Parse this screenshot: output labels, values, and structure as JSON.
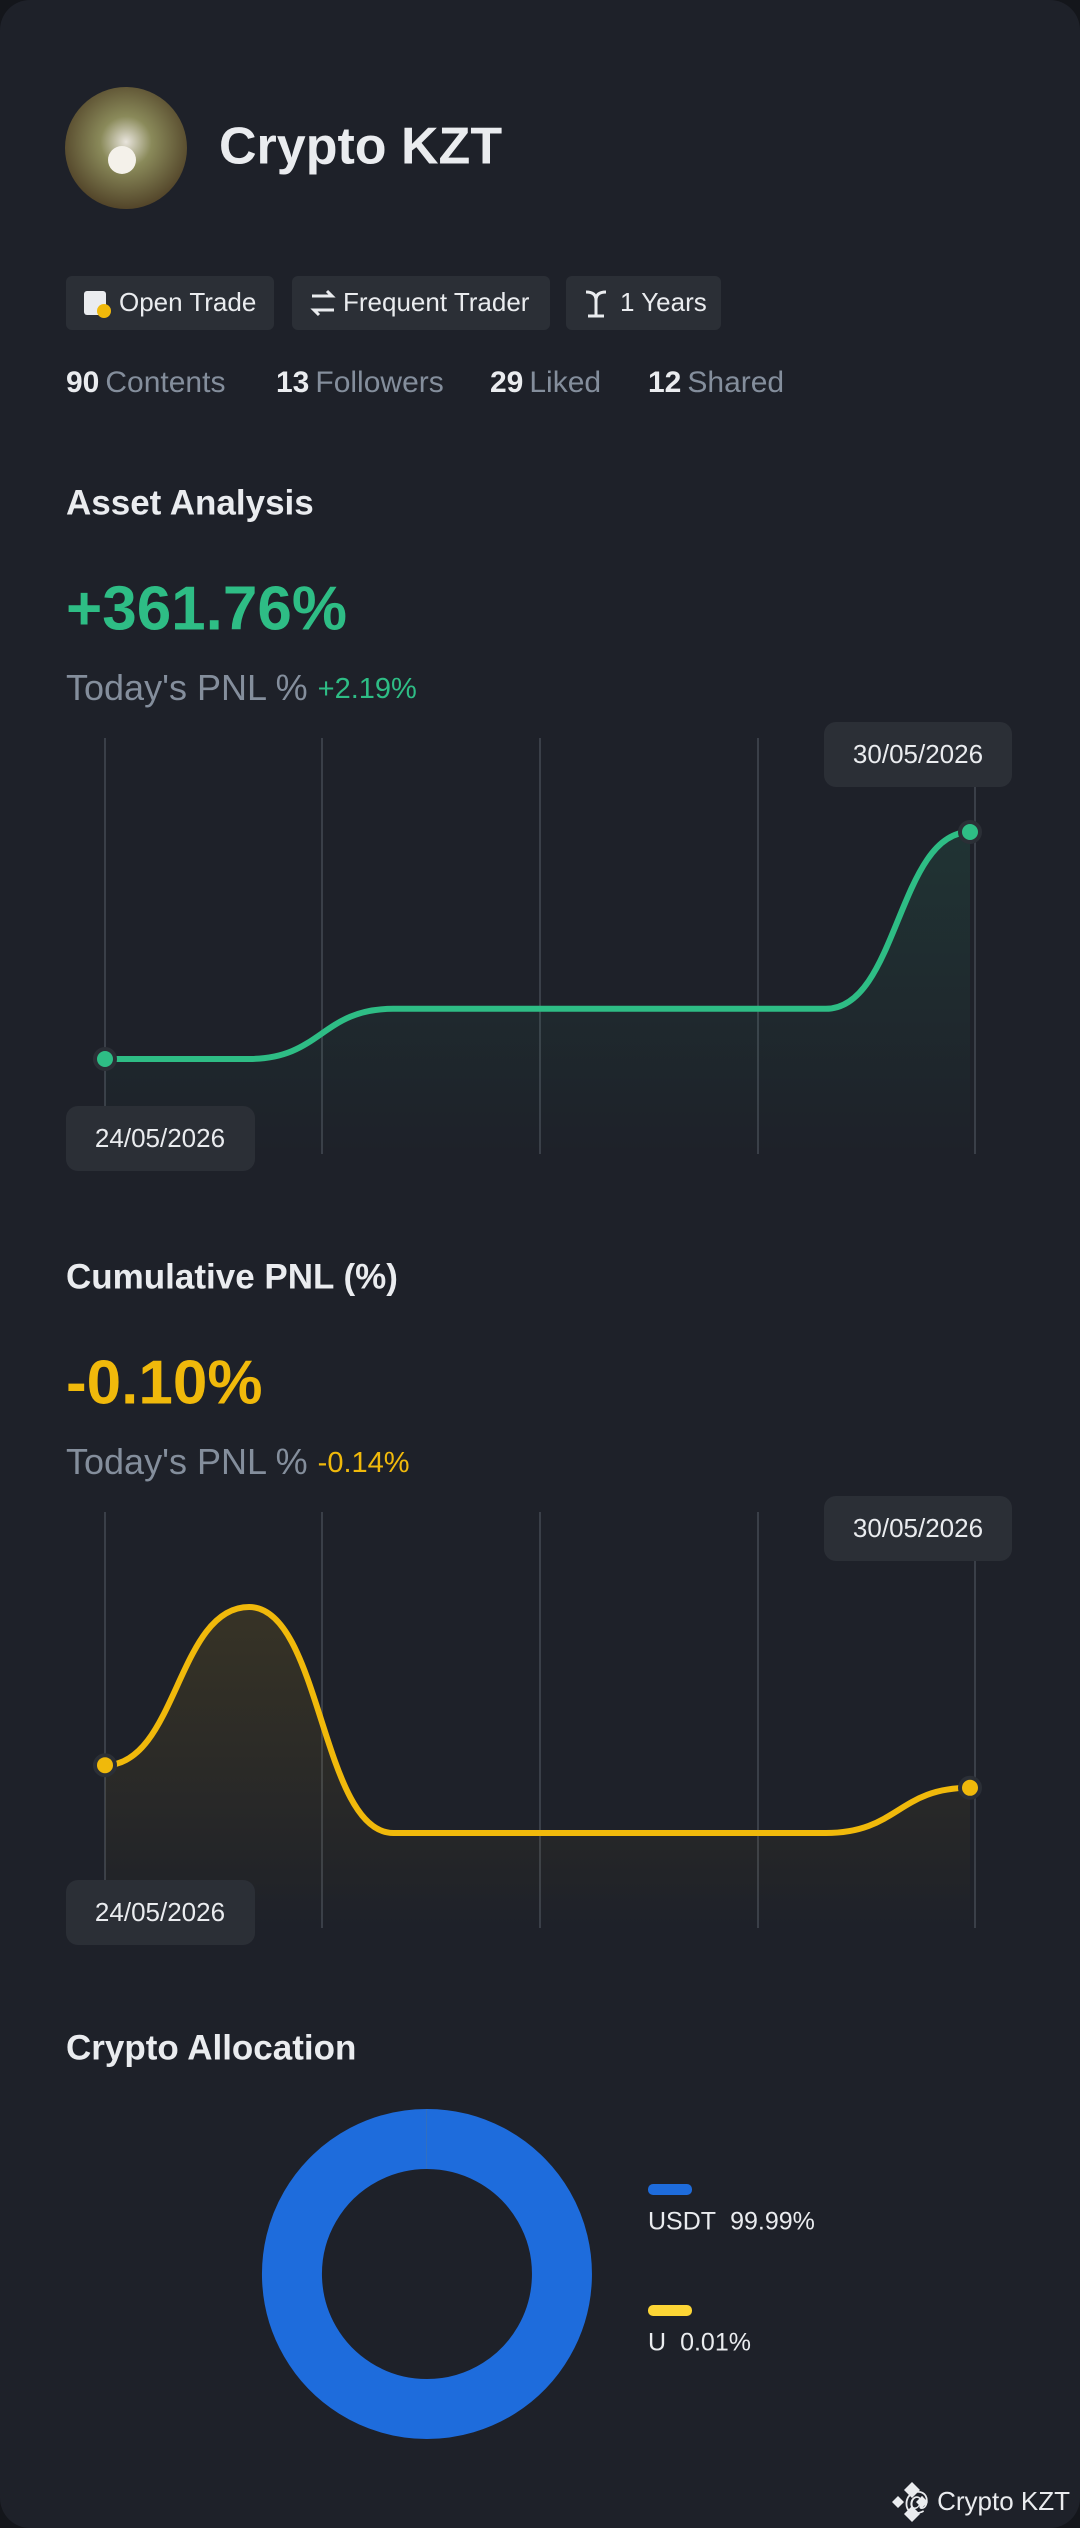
{
  "profile": {
    "name": "Crypto KZT",
    "tags": [
      "Open Trade",
      "Frequent Trader",
      "1 Years"
    ],
    "stats": [
      {
        "count": 90,
        "label": "Contents"
      },
      {
        "count": 13,
        "label": "Followers"
      },
      {
        "count": 29,
        "label": "Liked"
      },
      {
        "count": 12,
        "label": "Shared"
      }
    ]
  },
  "chart_data": [
    {
      "type": "line",
      "title": "Asset Analysis",
      "headline": "+361.76%",
      "today_label": "Today's PNL %",
      "today_change": "+2.19%",
      "x": [
        "24/05/2026",
        null,
        null,
        null,
        null,
        null,
        "30/05/2026"
      ],
      "series": [
        {
          "color": "#2ebd85",
          "values": [
            0,
            0,
            80,
            80,
            80,
            80,
            361.76
          ]
        }
      ]
    },
    {
      "type": "line",
      "title": "Cumulative PNL (%)",
      "headline": "-0.10%",
      "today_label": "Today's PNL %",
      "today_change": "-0.14%",
      "x": [
        "24/05/2026",
        null,
        null,
        null,
        null,
        null,
        "30/05/2026"
      ],
      "series": [
        {
          "color": "#f0b90b",
          "values": [
            -0.05,
            0.3,
            -0.2,
            -0.2,
            -0.2,
            -0.2,
            -0.1
          ]
        }
      ]
    },
    {
      "type": "pie",
      "title": "Crypto Allocation",
      "categories": [
        "USDT",
        "U"
      ],
      "values": [
        99.99,
        0.01
      ],
      "value_labels": [
        "99.99%",
        "0.01%"
      ],
      "colors": [
        "#1e6cdc",
        "#fcd535"
      ]
    }
  ],
  "footer": "@ Crypto KZT"
}
